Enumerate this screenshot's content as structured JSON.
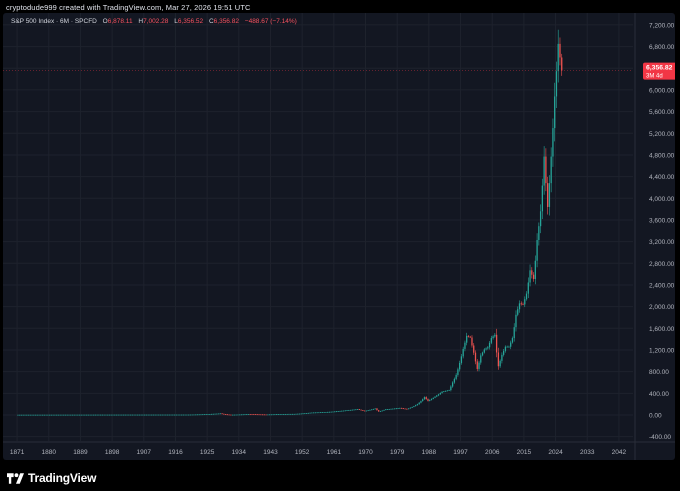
{
  "caption": "cryptodude999 created with TradingView.com, Mar 27, 2026 19:51 UTC",
  "legend": {
    "symbol": "S&P 500 Index · 6M · SPCFD",
    "open_label": "O",
    "open": "6,878.11",
    "high_label": "H",
    "high": "7,002.28",
    "low_label": "L",
    "low": "6,356.52",
    "close_label": "C",
    "close": "6,356.82",
    "change": "−488.67 (−7.14%)"
  },
  "price_tag": {
    "value": "6,356.82",
    "countdown": "3M 4d",
    "color": "#f23645"
  },
  "brand": {
    "name": "TradingView",
    "icon": "tradingview-logo-icon"
  },
  "colors": {
    "up": "#26a69a",
    "down": "#ef5350",
    "background": "#131722",
    "grid": "#1e222d"
  },
  "chart_data": {
    "type": "candlestick",
    "title": "",
    "xlabel": "",
    "ylabel": "",
    "x_ticks": [
      "1871",
      "1880",
      "1889",
      "1898",
      "1907",
      "1916",
      "1925",
      "1934",
      "1943",
      "1952",
      "1961",
      "1970",
      "1979",
      "1988",
      "1997",
      "2006",
      "2015",
      "2024",
      "2033",
      "2042"
    ],
    "y_ticks": [
      "7,200.00",
      "6,800.00",
      "6,400.00",
      "6,000.00",
      "5,600.00",
      "5,200.00",
      "4,800.00",
      "4,400.00",
      "4,000.00",
      "3,600.00",
      "3,200.00",
      "2,800.00",
      "2,400.00",
      "2,000.00",
      "1,600.00",
      "1,200.00",
      "800.00",
      "400.00",
      "0.00",
      "-400.00"
    ],
    "xlim": [
      1867,
      2046
    ],
    "ylim": [
      -480,
      7420
    ],
    "grid": true,
    "series": [
      {
        "year": 1871,
        "value": 4.4
      },
      {
        "year": 1900,
        "value": 6.1
      },
      {
        "year": 1920,
        "value": 7
      },
      {
        "year": 1929,
        "value": 30
      },
      {
        "year": 1932,
        "value": 5
      },
      {
        "year": 1937,
        "value": 18
      },
      {
        "year": 1942,
        "value": 9
      },
      {
        "year": 1946,
        "value": 18
      },
      {
        "year": 1950,
        "value": 20
      },
      {
        "year": 1955,
        "value": 45
      },
      {
        "year": 1960,
        "value": 58
      },
      {
        "year": 1965,
        "value": 88
      },
      {
        "year": 1968,
        "value": 108
      },
      {
        "year": 1970,
        "value": 75
      },
      {
        "year": 1973,
        "value": 120
      },
      {
        "year": 1974,
        "value": 65
      },
      {
        "year": 1976,
        "value": 105
      },
      {
        "year": 1980,
        "value": 130
      },
      {
        "year": 1982,
        "value": 110
      },
      {
        "year": 1985,
        "value": 200
      },
      {
        "year": 1987,
        "value": 330
      },
      {
        "year": 1988,
        "value": 260
      },
      {
        "year": 1990,
        "value": 340
      },
      {
        "year": 1992,
        "value": 430
      },
      {
        "year": 1994,
        "value": 460
      },
      {
        "year": 1995,
        "value": 600
      },
      {
        "year": 1996,
        "value": 740
      },
      {
        "year": 1997,
        "value": 960
      },
      {
        "year": 1998,
        "value": 1220
      },
      {
        "year": 1999,
        "value": 1460
      },
      {
        "year": 2000,
        "value": 1430
      },
      {
        "year": 2001,
        "value": 1150
      },
      {
        "year": 2002,
        "value": 850
      },
      {
        "year": 2003,
        "value": 1100
      },
      {
        "year": 2004,
        "value": 1210
      },
      {
        "year": 2005,
        "value": 1250
      },
      {
        "year": 2006,
        "value": 1420
      },
      {
        "year": 2007,
        "value": 1480
      },
      {
        "year": 2008,
        "value": 900
      },
      {
        "year": 2009,
        "value": 1110
      },
      {
        "year": 2010,
        "value": 1260
      },
      {
        "year": 2011,
        "value": 1260
      },
      {
        "year": 2012,
        "value": 1420
      },
      {
        "year": 2013,
        "value": 1850
      },
      {
        "year": 2014,
        "value": 2060
      },
      {
        "year": 2015,
        "value": 2040
      },
      {
        "year": 2016,
        "value": 2240
      },
      {
        "year": 2017,
        "value": 2670
      },
      {
        "year": 2018,
        "value": 2510
      },
      {
        "year": 2019,
        "value": 3230
      },
      {
        "year": 2020,
        "value": 3760
      },
      {
        "year": 2021,
        "value": 4770
      },
      {
        "year": 2022,
        "value": 3840
      },
      {
        "year": 2023,
        "value": 4770
      },
      {
        "year": 2024,
        "value": 5880
      },
      {
        "year": 2025,
        "value": 6850
      },
      {
        "year": 2026,
        "value": 6357
      }
    ]
  }
}
